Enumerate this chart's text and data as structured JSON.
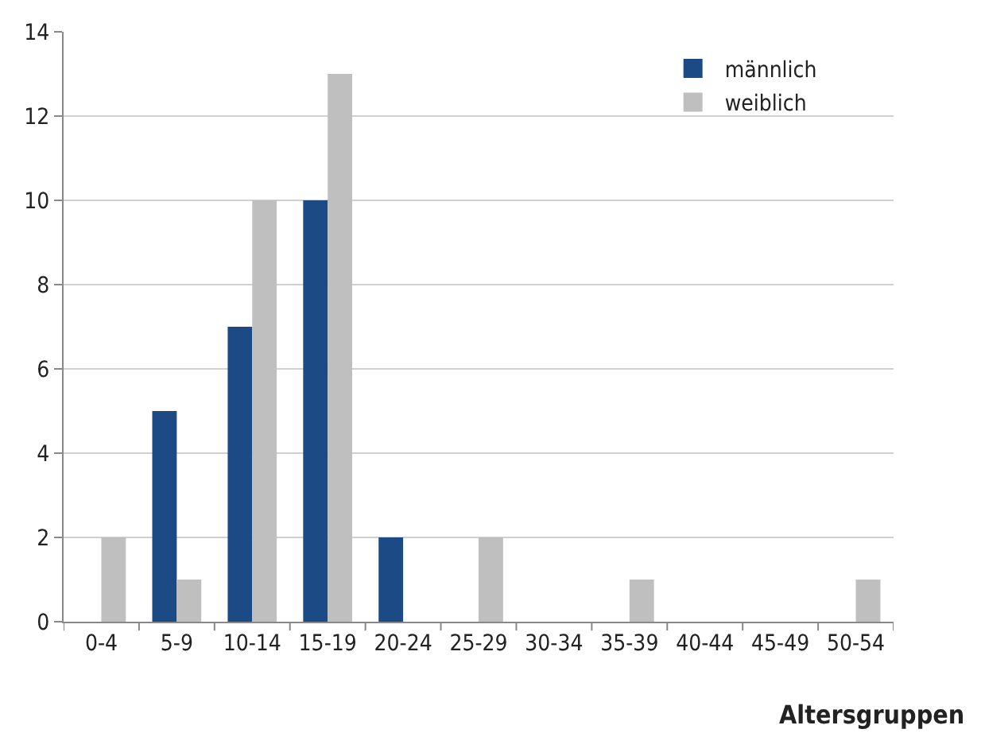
{
  "chart_data": {
    "type": "bar",
    "xlabel": "Altersgruppen",
    "categories": [
      "0-4",
      "5-9",
      "10-14",
      "15-19",
      "20-24",
      "25-29",
      "30-34",
      "35-39",
      "40-44",
      "45-49",
      "50-54"
    ],
    "series": [
      {
        "name": "männlich",
        "color": "#1b4a85",
        "values": [
          0,
          5,
          7,
          10,
          2,
          0,
          0,
          0,
          0,
          0,
          0
        ]
      },
      {
        "name": "weiblich",
        "color": "#bfbfbf",
        "values": [
          2,
          1,
          10,
          13,
          0,
          2,
          0,
          1,
          0,
          0,
          1
        ]
      }
    ],
    "ylim": [
      0,
      14
    ],
    "yticks": [
      0,
      2,
      4,
      6,
      8,
      10,
      12,
      14
    ],
    "grid": "y",
    "legend": "top right"
  }
}
